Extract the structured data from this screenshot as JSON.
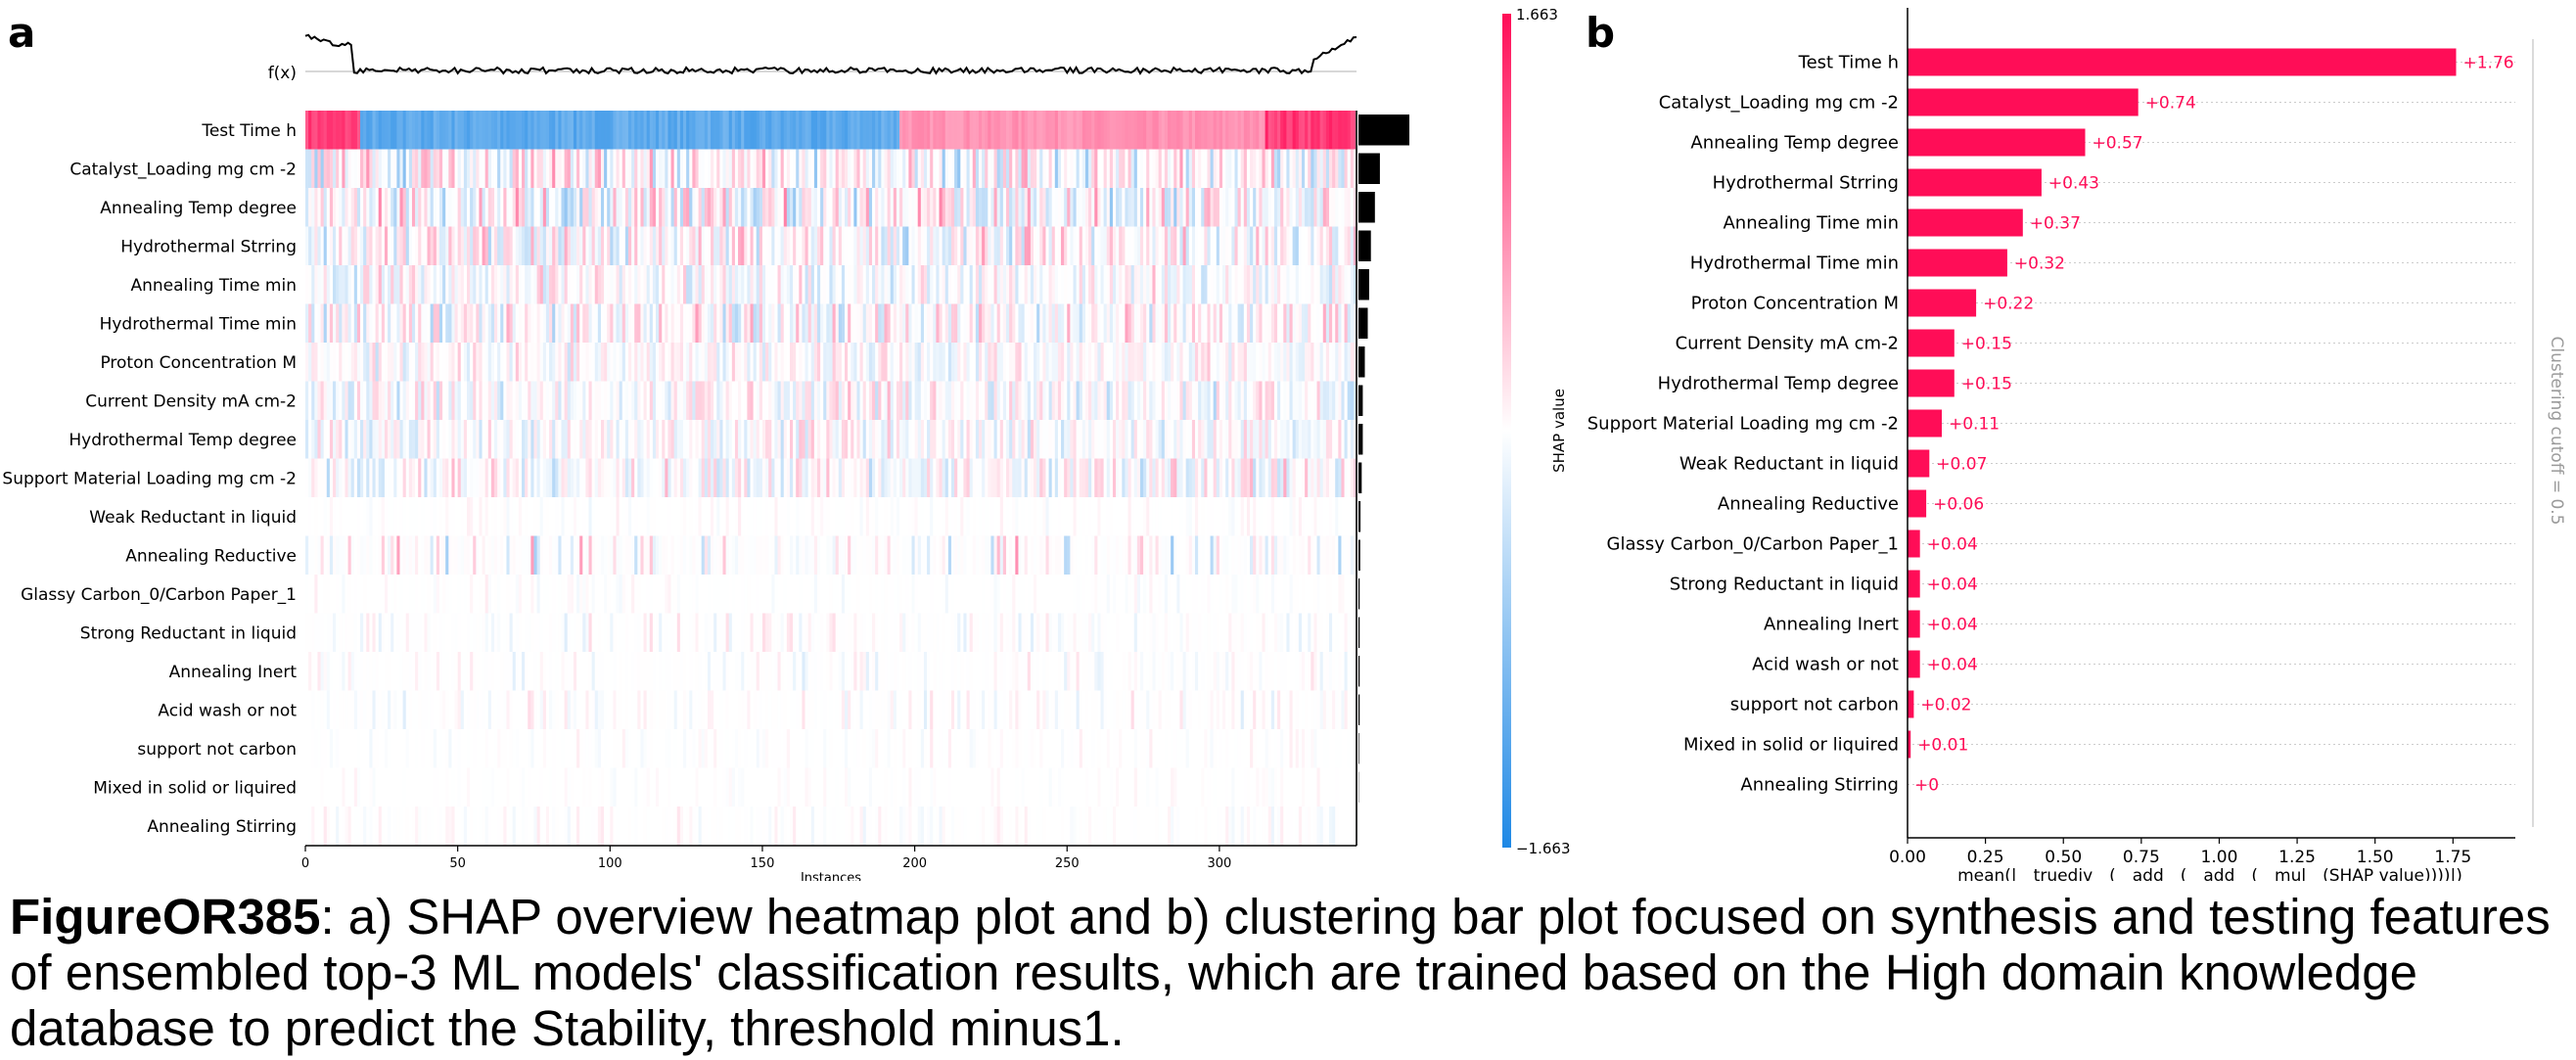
{
  "panel_a_label": "a",
  "panel_b_label": "b",
  "caption": {
    "label": "FigureOR385",
    "text": ": a) SHAP overview heatmap plot and b) clustering bar plot focused on synthesis and testing features of ensembled top-3 ML models' classification results, which are trained based on the High domain knowledge database to predict the Stability, threshold minus1."
  },
  "colors": {
    "positive": "#ff0d57",
    "negative": "#1e88e5",
    "neutral": "#ffffff",
    "bar": "#ff0d57",
    "importance_bar": "#000000"
  },
  "chart_data": [
    {
      "type": "heatmap",
      "panel": "a",
      "features": [
        "Test Time h",
        "Catalyst_Loading mg cm -2",
        "Annealing Temp degree",
        "Hydrothermal Strring",
        "Annealing Time min",
        "Hydrothermal Time min",
        "Proton Concentration M",
        "Current Density mA cm-2",
        "Hydrothermal Temp degree",
        "Support Material Loading mg cm -2",
        "Weak Reductant in liquid",
        "Annealing Reductive",
        "Glassy Carbon_0/Carbon Paper_1",
        "Strong Reductant in liquid",
        "Annealing Inert",
        "Acid wash or not",
        "support not carbon",
        "Mixed in solid or liquired",
        "Annealing Stirring"
      ],
      "importance": [
        1.76,
        0.74,
        0.57,
        0.43,
        0.37,
        0.32,
        0.22,
        0.15,
        0.15,
        0.11,
        0.07,
        0.06,
        0.04,
        0.04,
        0.04,
        0.04,
        0.02,
        0.01,
        0
      ],
      "row_amplitude": [
        1.663,
        0.9,
        0.9,
        0.75,
        0.55,
        0.7,
        0.45,
        0.6,
        0.5,
        0.6,
        0.15,
        0.9,
        0.15,
        0.3,
        0.3,
        0.3,
        0.15,
        0.1,
        0.2
      ],
      "n_instances": 345,
      "xlabel": "Instances",
      "xticks": [
        0,
        50,
        100,
        150,
        200,
        250,
        300
      ],
      "fx_label": "f(x)",
      "colorbar": {
        "min": -1.663,
        "max": 1.663,
        "min_label": "−1.663",
        "max_label": "1.663",
        "label": "SHAP value"
      },
      "test_time_segments": [
        {
          "from": 0,
          "to": 18,
          "value": 1.5
        },
        {
          "from": 18,
          "to": 195,
          "value": -1.35
        },
        {
          "from": 195,
          "to": 315,
          "value": 0.85
        },
        {
          "from": 315,
          "to": 345,
          "value": 1.55
        }
      ]
    },
    {
      "type": "bar",
      "panel": "b",
      "orientation": "horizontal",
      "categories": [
        "Test Time h",
        "Catalyst_Loading mg cm -2",
        "Annealing Temp degree",
        "Hydrothermal Strring",
        "Annealing Time min",
        "Hydrothermal Time min",
        "Proton Concentration M",
        "Current Density mA cm-2",
        "Hydrothermal Temp degree",
        "Support Material Loading mg cm -2",
        "Weak Reductant in liquid",
        "Annealing Reductive",
        "Glassy Carbon_0/Carbon Paper_1",
        "Strong Reductant in liquid",
        "Annealing Inert",
        "Acid wash or not",
        "support not carbon",
        "Mixed in solid or liquired",
        "Annealing Stirring"
      ],
      "values": [
        1.76,
        0.74,
        0.57,
        0.43,
        0.37,
        0.32,
        0.22,
        0.15,
        0.15,
        0.11,
        0.07,
        0.06,
        0.04,
        0.04,
        0.04,
        0.04,
        0.02,
        0.01,
        0
      ],
      "value_labels": [
        "+1.76",
        "+0.74",
        "+0.57",
        "+0.43",
        "+0.37",
        "+0.32",
        "+0.22",
        "+0.15",
        "+0.15",
        "+0.11",
        "+0.07",
        "+0.06",
        "+0.04",
        "+0.04",
        "+0.04",
        "+0.04",
        "+0.02",
        "+0.01",
        "+0"
      ],
      "xlim": [
        0,
        1.95
      ],
      "xticks": [
        0.0,
        0.25,
        0.5,
        0.75,
        1.0,
        1.25,
        1.5,
        1.75
      ],
      "xtick_labels": [
        "0.00",
        "0.25",
        "0.50",
        "0.75",
        "1.00",
        "1.25",
        "1.50",
        "1.75"
      ],
      "xlabel": "mean(|__truediv__(__add__(__add__(__mul__(SHAP value))))|)",
      "side_label": "Clustering cutoff = 0.5"
    }
  ]
}
